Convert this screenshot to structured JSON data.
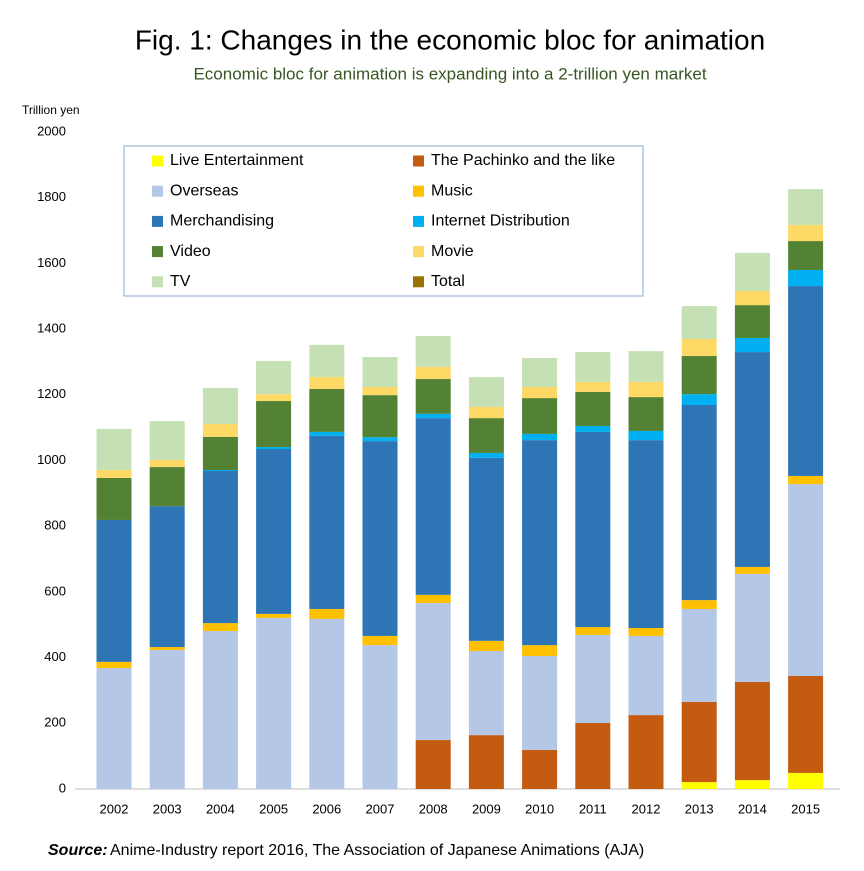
{
  "chart_data": {
    "type": "stacked_bar",
    "title": "Fig. 1: Changes in the economic bloc for animation",
    "subtitle": "Economic bloc for animation is expanding into a 2-trillion yen market",
    "y_label": "Trillion yen",
    "categories": [
      "2002",
      "2003",
      "2004",
      "2005",
      "2006",
      "2007",
      "2008",
      "2009",
      "2010",
      "2011",
      "2012",
      "2013",
      "2014",
      "2015"
    ],
    "series": [
      {
        "name": "Live Entertainment",
        "color": "#ffff00",
        "values": [
          0,
          0,
          0,
          0,
          0,
          0,
          0,
          0,
          0,
          0,
          0,
          21,
          27,
          49
        ]
      },
      {
        "name": "The Pachinko and the like",
        "color": "#c55a11",
        "values": [
          0,
          0,
          0,
          0,
          0,
          0,
          149,
          164,
          119,
          201,
          225,
          244,
          299,
          295
        ]
      },
      {
        "name": "Overseas",
        "color": "#b4c7e7",
        "values": [
          368,
          423,
          481,
          521,
          518,
          438,
          417,
          256,
          286,
          268,
          241,
          283,
          329,
          584
        ]
      },
      {
        "name": "Music",
        "color": "#ffc000",
        "values": [
          19,
          9,
          24,
          12,
          30,
          28,
          25,
          31,
          33,
          24,
          24,
          27,
          21,
          25
        ]
      },
      {
        "name": "Merchandising",
        "color": "#2e75b6",
        "values": [
          432,
          429,
          463,
          502,
          527,
          593,
          538,
          557,
          624,
          594,
          572,
          594,
          654,
          578
        ]
      },
      {
        "name": "Internet Distribution",
        "color": "#00b0f0",
        "values": [
          0,
          0,
          3,
          6,
          12,
          12,
          13,
          15,
          19,
          18,
          28,
          33,
          43,
          49
        ]
      },
      {
        "name": "Video",
        "color": "#548235",
        "values": [
          128,
          119,
          101,
          140,
          131,
          128,
          106,
          106,
          109,
          104,
          103,
          116,
          100,
          88
        ]
      },
      {
        "name": "Movie",
        "color": "#ffd966",
        "values": [
          24,
          22,
          39,
          21,
          36,
          25,
          37,
          34,
          34,
          30,
          46,
          52,
          43,
          49
        ]
      },
      {
        "name": "TV",
        "color": "#c5e0b4",
        "values": [
          125,
          118,
          110,
          101,
          98,
          91,
          94,
          91,
          88,
          91,
          94,
          100,
          116,
          109
        ]
      },
      {
        "name": "Total",
        "color": "#997300",
        "values": [
          1096,
          1120,
          1221,
          1303,
          1352,
          1315,
          1379,
          1254,
          1312,
          1330,
          1333,
          1470,
          1632,
          1826
        ]
      }
    ],
    "ylim": [
      0,
      2000
    ],
    "yticks": [
      0,
      200,
      400,
      600,
      800,
      1000,
      1200,
      1400,
      1600,
      1800,
      2000
    ],
    "grid": false,
    "legend": "top-left",
    "source": {
      "label": "Source:",
      "text": "Anime-Industry report 2016, The Association of Japanese Animations (AJA)"
    }
  }
}
